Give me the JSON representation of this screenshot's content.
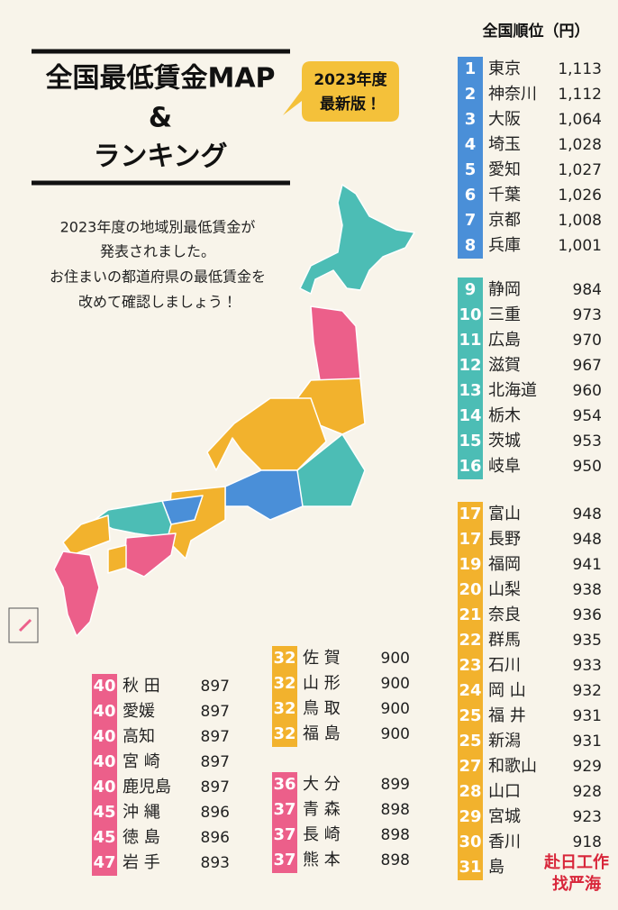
{
  "header": {
    "title_lines": [
      "全国最低賃金MAP",
      "&",
      "ランキング"
    ],
    "badge_lines": [
      "2023年度",
      "最新版！"
    ]
  },
  "intro_lines": [
    "2023年度の地域別最低賃金が",
    "発表されました。",
    "お住まいの都道府県の最低賃金を",
    "改めて確認しましょう！"
  ],
  "ranking_title": "全国順位（円）",
  "groups": [
    {
      "color": "#4a8fd8",
      "entries": [
        {
          "rank": 1,
          "name": "東京",
          "wage": "1,113"
        },
        {
          "rank": 2,
          "name": "神奈川",
          "wage": "1,112"
        },
        {
          "rank": 3,
          "name": "大阪",
          "wage": "1,064"
        },
        {
          "rank": 4,
          "name": "埼玉",
          "wage": "1,028"
        },
        {
          "rank": 5,
          "name": "愛知",
          "wage": "1,027"
        },
        {
          "rank": 6,
          "name": "千葉",
          "wage": "1,026"
        },
        {
          "rank": 7,
          "name": "京都",
          "wage": "1,008"
        },
        {
          "rank": 8,
          "name": "兵庫",
          "wage": "1,001"
        }
      ]
    },
    {
      "color": "#4cbdb5",
      "entries": [
        {
          "rank": 9,
          "name": "静岡",
          "wage": 984
        },
        {
          "rank": 10,
          "name": "三重",
          "wage": 973
        },
        {
          "rank": 11,
          "name": "広島",
          "wage": 970
        },
        {
          "rank": 12,
          "name": "滋賀",
          "wage": 967
        },
        {
          "rank": 13,
          "name": "北海道",
          "wage": 960
        },
        {
          "rank": 14,
          "name": "栃木",
          "wage": 954
        },
        {
          "rank": 15,
          "name": "茨城",
          "wage": 953
        },
        {
          "rank": 16,
          "name": "岐阜",
          "wage": 950
        }
      ]
    },
    {
      "color": "#f2b22d",
      "entries": [
        {
          "rank": 17,
          "name": "富山",
          "wage": 948
        },
        {
          "rank": 17,
          "name": "長野",
          "wage": 948
        },
        {
          "rank": 19,
          "name": "福岡",
          "wage": 941
        },
        {
          "rank": 20,
          "name": "山梨",
          "wage": 938
        },
        {
          "rank": 21,
          "name": "奈良",
          "wage": 936
        },
        {
          "rank": 22,
          "name": "群馬",
          "wage": 935
        },
        {
          "rank": 23,
          "name": "石川",
          "wage": 933
        },
        {
          "rank": 24,
          "name": "岡 山",
          "wage": 932
        },
        {
          "rank": 25,
          "name": "福 井",
          "wage": 931
        },
        {
          "rank": 25,
          "name": "新潟",
          "wage": 931
        },
        {
          "rank": 27,
          "name": "和歌山",
          "wage": 929
        },
        {
          "rank": 28,
          "name": "山口",
          "wage": 928
        },
        {
          "rank": 29,
          "name": "宮城",
          "wage": 923
        },
        {
          "rank": 30,
          "name": "香川",
          "wage": 918
        },
        {
          "rank": 31,
          "name": "島"
        }
      ]
    },
    {
      "color": "#f2b22d",
      "entries": [
        {
          "rank": 32,
          "name": "佐 賀",
          "wage": 900
        },
        {
          "rank": 32,
          "name": "山 形",
          "wage": 900
        },
        {
          "rank": 32,
          "name": "鳥 取",
          "wage": 900
        },
        {
          "rank": 32,
          "name": "福 島",
          "wage": 900
        }
      ]
    },
    {
      "color": "#ec5f8a",
      "entries": [
        {
          "rank": 36,
          "name": "大 分",
          "wage": 899
        },
        {
          "rank": 37,
          "name": "青 森",
          "wage": 898
        },
        {
          "rank": 37,
          "name": "長 崎",
          "wage": 898
        },
        {
          "rank": 37,
          "name": "熊 本",
          "wage": 898
        }
      ]
    },
    {
      "color": "#ec5f8a",
      "entries": [
        {
          "rank": 40,
          "name": "秋 田",
          "wage": 897
        },
        {
          "rank": 40,
          "name": "愛媛",
          "wage": 897
        },
        {
          "rank": 40,
          "name": "高知",
          "wage": 897
        },
        {
          "rank": 40,
          "name": "宮 崎",
          "wage": 897
        },
        {
          "rank": 40,
          "name": "鹿児島",
          "wage": 897
        },
        {
          "rank": 45,
          "name": "沖 縄",
          "wage": 896
        },
        {
          "rank": 45,
          "name": "徳 島",
          "wage": 896
        },
        {
          "rank": 47,
          "name": "岩 手",
          "wage": 893
        }
      ]
    }
  ],
  "watermark": [
    "赴日工作",
    "找严海"
  ]
}
